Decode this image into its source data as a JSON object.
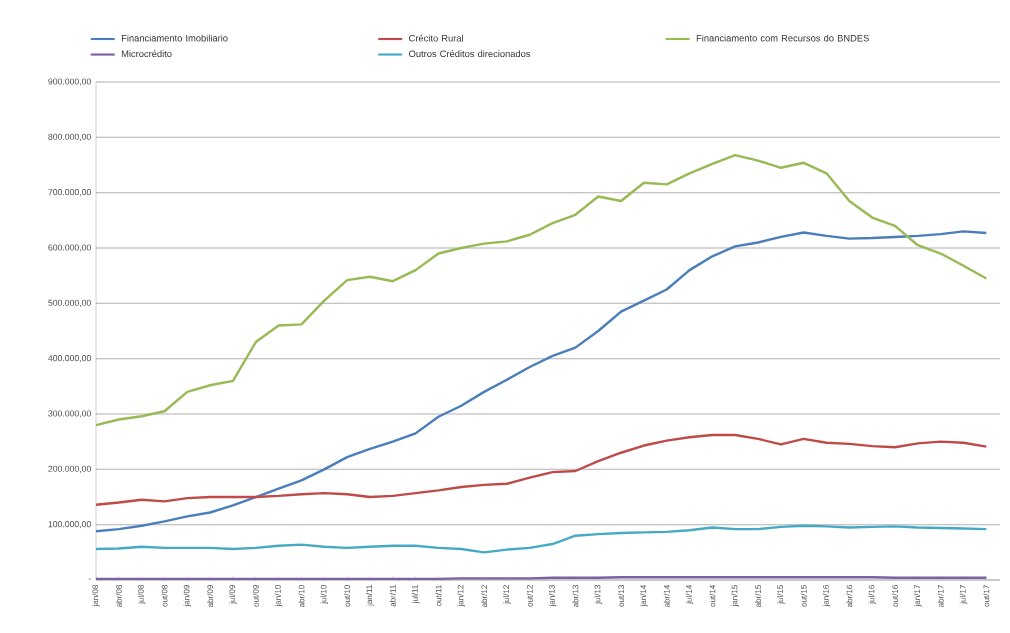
{
  "chart_data": {
    "type": "line",
    "categories": [
      "jan/08",
      "abr/08",
      "jul/08",
      "out/08",
      "jan/09",
      "abr/09",
      "jul/09",
      "out/09",
      "jan/10",
      "abr/10",
      "jul/10",
      "out/10",
      "jan/11",
      "abr/11",
      "jul/11",
      "out/11",
      "jan/12",
      "abr/12",
      "jul/12",
      "out/12",
      "jan/13",
      "abr/13",
      "jul/13",
      "out/13",
      "jan/14",
      "abr/14",
      "jul/14",
      "out/14",
      "jan/15",
      "abr/15",
      "jul/15",
      "out/15",
      "jan/16",
      "abr/16",
      "jul/16",
      "out/16",
      "jan/17",
      "abr/17",
      "jul/17",
      "out/17"
    ],
    "series": [
      {
        "name": "Financiamento Imobiliario",
        "color": "#4a7ebb",
        "values": [
          88000,
          92000,
          98000,
          106000,
          115000,
          122000,
          135000,
          150000,
          165000,
          180000,
          200000,
          222000,
          237000,
          250000,
          265000,
          295000,
          315000,
          340000,
          362000,
          385000,
          405000,
          420000,
          450000,
          485000,
          505000,
          525000,
          560000,
          585000,
          603000,
          610000,
          620000,
          628000,
          622000,
          617000,
          618000,
          620000,
          622000,
          625000,
          630000,
          627000
        ]
      },
      {
        "name": "Crécito Rural",
        "color": "#be4b48",
        "values": [
          136000,
          140000,
          145000,
          142000,
          148000,
          150000,
          150000,
          150000,
          152000,
          155000,
          157000,
          155000,
          150000,
          152000,
          157000,
          162000,
          168000,
          172000,
          174000,
          185000,
          195000,
          197000,
          215000,
          230000,
          243000,
          252000,
          258000,
          262000,
          262000,
          255000,
          245000,
          255000,
          248000,
          246000,
          242000,
          240000,
          247000,
          250000,
          248000,
          241000
        ]
      },
      {
        "name": "Financiamento com Recursos do BNDES",
        "color": "#98b954",
        "values": [
          280000,
          290000,
          296000,
          305000,
          340000,
          352000,
          360000,
          430000,
          460000,
          462000,
          505000,
          542000,
          548000,
          540000,
          560000,
          590000,
          600000,
          608000,
          612000,
          624000,
          645000,
          660000,
          693000,
          685000,
          718000,
          715000,
          735000,
          752000,
          768000,
          758000,
          745000,
          754000,
          735000,
          685000,
          655000,
          640000,
          605000,
          590000,
          568000,
          545000
        ]
      },
      {
        "name": "Microcrédito",
        "color": "#7d60a0",
        "values": [
          2000,
          2000,
          2000,
          2000,
          2000,
          2000,
          2000,
          2000,
          2000,
          2000,
          2000,
          2000,
          2000,
          2000,
          2000,
          2000,
          3000,
          3000,
          3000,
          3000,
          4000,
          4000,
          4000,
          5000,
          5000,
          5000,
          5000,
          5000,
          5000,
          5000,
          5000,
          5000,
          5000,
          5000,
          5000,
          4000,
          4000,
          4000,
          4000,
          4000
        ]
      },
      {
        "name": "Outros Créditos direcionados",
        "color": "#46aac5",
        "values": [
          56000,
          57000,
          60000,
          58000,
          58000,
          58000,
          56000,
          58000,
          62000,
          64000,
          60000,
          58000,
          60000,
          62000,
          62000,
          58000,
          56000,
          50000,
          55000,
          58000,
          65000,
          80000,
          83000,
          85000,
          86000,
          87000,
          90000,
          95000,
          92000,
          92000,
          96000,
          98000,
          97000,
          95000,
          96000,
          97000,
          95000,
          94000,
          93000,
          92000
        ]
      }
    ],
    "ylim": [
      0,
      900000
    ],
    "yticks": [
      {
        "value": 0,
        "label": "-"
      },
      {
        "value": 100000,
        "label": "100.000,00"
      },
      {
        "value": 200000,
        "label": "200.000,00"
      },
      {
        "value": 300000,
        "label": "300.000,00"
      },
      {
        "value": 400000,
        "label": "400.000,00"
      },
      {
        "value": 500000,
        "label": "500.000,00"
      },
      {
        "value": 600000,
        "label": "600.000,00"
      },
      {
        "value": 700000,
        "label": "700.000,00"
      },
      {
        "value": 800000,
        "label": "800.000,00"
      },
      {
        "value": 900000,
        "label": "900.000,00"
      }
    ],
    "grid": "y",
    "legend": "top"
  }
}
